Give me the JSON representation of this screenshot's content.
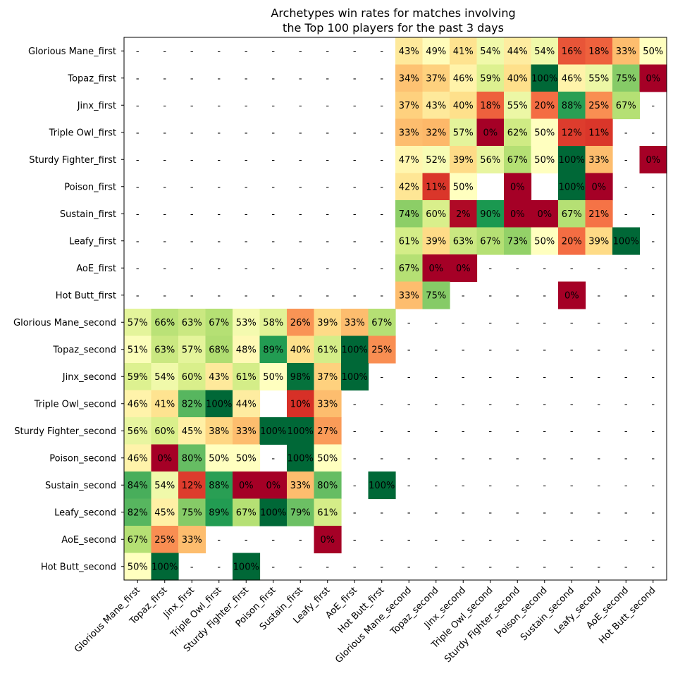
{
  "chart_data": {
    "type": "heatmap",
    "title_lines": [
      "Archetypes win rates for matches involving",
      "the Top 100 players for the past 3 days"
    ],
    "row_labels": [
      "Glorious Mane_first",
      "Topaz_first",
      "Jinx_first",
      "Triple Owl_first",
      "Sturdy Fighter_first",
      "Poison_first",
      "Sustain_first",
      "Leafy_first",
      "AoE_first",
      "Hot Butt_first",
      "Glorious Mane_second",
      "Topaz_second",
      "Jinx_second",
      "Triple Owl_second",
      "Sturdy Fighter_second",
      "Poison_second",
      "Sustain_second",
      "Leafy_second",
      "AoE_second",
      "Hot Butt_second"
    ],
    "col_labels": [
      "Glorious Mane_first",
      "Topaz_first",
      "Jinx_first",
      "Triple Owl_first",
      "Sturdy Fighter_first",
      "Poison_first",
      "Sustain_first",
      "Leafy_first",
      "AoE_first",
      "Hot Butt_first",
      "Glorious Mane_second",
      "Topaz_second",
      "Jinx_second",
      "Triple Owl_second",
      "Sturdy Fighter_second",
      "Poison_second",
      "Sustain_second",
      "Leafy_second",
      "AoE_second",
      "Hot Butt_second"
    ],
    "colormap": "RdYlGn",
    "value_range": [
      0,
      100
    ],
    "grid": false,
    "missing_label": "-",
    "values": [
      [
        null,
        null,
        null,
        null,
        null,
        null,
        null,
        null,
        null,
        null,
        43,
        49,
        41,
        54,
        44,
        54,
        16,
        18,
        33,
        50
      ],
      [
        null,
        null,
        null,
        null,
        null,
        null,
        null,
        null,
        null,
        null,
        34,
        37,
        46,
        59,
        40,
        100,
        46,
        55,
        75,
        0
      ],
      [
        null,
        null,
        null,
        null,
        null,
        null,
        null,
        null,
        null,
        null,
        37,
        43,
        40,
        18,
        55,
        20,
        88,
        25,
        67,
        null
      ],
      [
        null,
        null,
        null,
        null,
        null,
        null,
        null,
        null,
        null,
        null,
        33,
        32,
        57,
        0,
        62,
        50,
        12,
        11,
        null,
        null
      ],
      [
        null,
        null,
        null,
        null,
        null,
        null,
        null,
        null,
        null,
        null,
        47,
        52,
        39,
        56,
        67,
        50,
        100,
        33,
        null,
        0
      ],
      [
        null,
        null,
        null,
        null,
        null,
        null,
        null,
        null,
        null,
        null,
        42,
        11,
        50,
        "",
        0,
        "",
        100,
        0,
        null,
        null
      ],
      [
        null,
        null,
        null,
        null,
        null,
        null,
        null,
        null,
        null,
        null,
        74,
        60,
        2,
        90,
        0,
        0,
        67,
        21,
        null,
        null
      ],
      [
        null,
        null,
        null,
        null,
        null,
        null,
        null,
        null,
        null,
        null,
        61,
        39,
        63,
        67,
        73,
        50,
        20,
        39,
        100,
        null
      ],
      [
        null,
        null,
        null,
        null,
        null,
        null,
        null,
        null,
        null,
        null,
        67,
        0,
        0,
        null,
        null,
        null,
        null,
        null,
        null,
        null
      ],
      [
        null,
        null,
        null,
        null,
        null,
        null,
        null,
        null,
        null,
        null,
        33,
        75,
        null,
        null,
        null,
        null,
        0,
        null,
        null,
        null
      ],
      [
        57,
        66,
        63,
        67,
        53,
        58,
        26,
        39,
        33,
        67,
        null,
        null,
        null,
        null,
        null,
        null,
        null,
        null,
        null,
        null
      ],
      [
        51,
        63,
        57,
        68,
        48,
        89,
        40,
        61,
        100,
        25,
        null,
        null,
        null,
        null,
        null,
        null,
        null,
        null,
        null,
        null
      ],
      [
        59,
        54,
        60,
        43,
        61,
        50,
        98,
        37,
        100,
        null,
        null,
        null,
        null,
        null,
        null,
        null,
        null,
        null,
        null,
        null
      ],
      [
        46,
        41,
        82,
        100,
        44,
        "",
        10,
        33,
        null,
        null,
        null,
        null,
        null,
        null,
        null,
        null,
        null,
        null,
        null,
        null
      ],
      [
        56,
        60,
        45,
        38,
        33,
        100,
        100,
        27,
        null,
        null,
        null,
        null,
        null,
        null,
        null,
        null,
        null,
        null,
        null,
        null
      ],
      [
        46,
        0,
        80,
        50,
        50,
        null,
        100,
        50,
        null,
        null,
        null,
        null,
        null,
        null,
        null,
        null,
        null,
        null,
        null,
        null
      ],
      [
        84,
        54,
        12,
        88,
        0,
        0,
        33,
        80,
        null,
        100,
        null,
        null,
        null,
        null,
        null,
        null,
        null,
        null,
        null,
        null
      ],
      [
        82,
        45,
        75,
        89,
        67,
        100,
        79,
        61,
        null,
        null,
        null,
        null,
        null,
        null,
        null,
        null,
        null,
        null,
        null,
        null
      ],
      [
        67,
        25,
        33,
        null,
        null,
        null,
        null,
        0,
        null,
        null,
        null,
        null,
        null,
        null,
        null,
        null,
        null,
        null,
        null,
        null
      ],
      [
        50,
        100,
        null,
        null,
        100,
        null,
        null,
        null,
        null,
        null,
        null,
        null,
        null,
        null,
        null,
        null,
        null,
        null,
        null,
        null
      ]
    ]
  }
}
